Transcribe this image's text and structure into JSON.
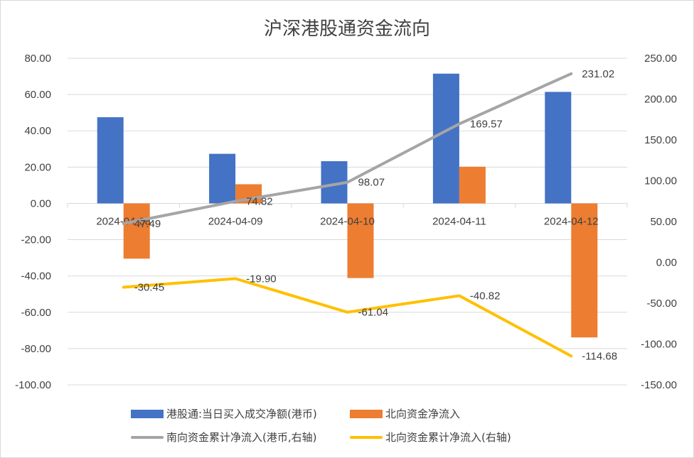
{
  "chart_data": {
    "type": "bar+line",
    "title": "沪深港股通资金流向",
    "categories": [
      "2024-04-08",
      "2024-04-09",
      "2024-04-10",
      "2024-04-11",
      "2024-04-12"
    ],
    "left_axis": {
      "ylim": [
        -100,
        80
      ],
      "ticks": [
        "80.00",
        "60.00",
        "40.00",
        "20.00",
        "0.00",
        "-20.00",
        "-40.00",
        "-60.00",
        "-80.00",
        "-100.00"
      ]
    },
    "right_axis": {
      "ylim": [
        -150,
        250
      ],
      "ticks": [
        "250.00",
        "200.00",
        "150.00",
        "100.00",
        "50.00",
        "0.00",
        "-50.00",
        "-100.00",
        "-150.00"
      ]
    },
    "series": [
      {
        "name": "港股通:当日买入成交净额(港币)",
        "type": "bar",
        "axis": "left",
        "color": "#4472C4",
        "values": [
          47.49,
          27.33,
          23.25,
          71.5,
          61.45
        ]
      },
      {
        "name": "北向资金净流入",
        "type": "bar",
        "axis": "left",
        "color": "#ED7D31",
        "values": [
          -30.45,
          10.55,
          -41.14,
          20.22,
          -73.86
        ]
      },
      {
        "name": "南向资金累计净流入(港币,右轴)",
        "type": "line",
        "axis": "right",
        "color": "#A5A5A5",
        "values": [
          47.49,
          74.82,
          98.07,
          169.57,
          231.02
        ],
        "labels": [
          "47.49",
          "74.82",
          "98.07",
          "169.57",
          "231.02"
        ]
      },
      {
        "name": "北向资金累计净流入(右轴)",
        "type": "line",
        "axis": "right",
        "color": "#FFC000",
        "values": [
          -30.45,
          -19.9,
          -61.04,
          -40.82,
          -114.68
        ],
        "labels": [
          "-30.45",
          "-19.90",
          "-61.04",
          "-40.82",
          "-114.68"
        ]
      }
    ],
    "grid": true,
    "legend_position": "bottom"
  }
}
